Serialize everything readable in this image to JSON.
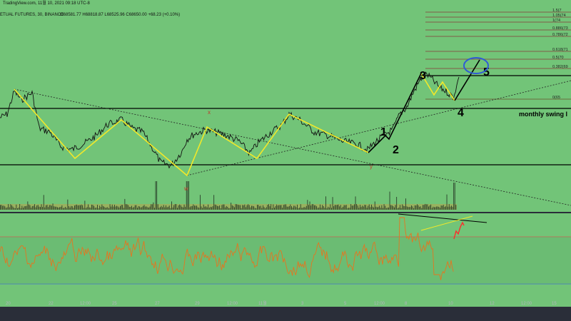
{
  "header": {
    "line1": "TradingView.com, 11월 10, 2021 09:18 UTC-8",
    "line2": "ETUAL FUTURES, 30, BINANCE",
    "ohlc": "O68581.77  H68818.87  L68525.96  C68650.00  +68.23 (+0.10%)"
  },
  "chart_data": {
    "type": "line",
    "title": "",
    "x_ticks": [
      "20",
      "22",
      "12:00",
      "25",
      "27",
      "29",
      "12:00",
      "11월",
      "3",
      "5",
      "12:00",
      "8",
      "10",
      "12",
      "12:00",
      "15"
    ],
    "fib_levels": [
      {
        "label": "1.5(7",
        "value": 1.5
      },
      {
        "label": "1.05(74",
        "value": 1.05
      },
      {
        "label": "1(74",
        "value": 1
      },
      {
        "label": "0.886(73",
        "value": 0.886
      },
      {
        "label": "0.786(72",
        "value": 0.786
      },
      {
        "label": "0.618(71",
        "value": 0.618
      },
      {
        "label": "0.5(70",
        "value": 0.5
      },
      {
        "label": "0.382(69",
        "value": 0.382
      },
      {
        "label": "0(65",
        "value": 0
      }
    ],
    "wave_labels": [
      "1",
      "2",
      "3",
      "4",
      "5"
    ],
    "minor_labels": [
      "x",
      "y",
      "w"
    ],
    "annotation": "monthly swing l",
    "colors": {
      "background": "#72c478",
      "price_line": "#111111",
      "pattern_line": "#f2e829",
      "rsi_line": "#e5751f",
      "rsi_highlight": "#ff2b2b",
      "ellipse": "#2f5bd6",
      "axis_bg": "#2a2e39",
      "volume": "#2a3f2a"
    },
    "grid": false
  }
}
